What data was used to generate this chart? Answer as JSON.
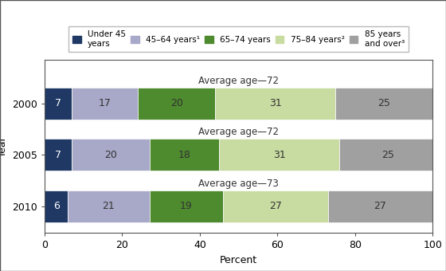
{
  "years": [
    "2000",
    "2005",
    "2010"
  ],
  "categories": [
    "Under 45\nyears",
    "45–64 years¹",
    "65–74 years",
    "75–84 years²",
    "85 years\nand over³"
  ],
  "values": [
    [
      7,
      17,
      20,
      31,
      25
    ],
    [
      7,
      20,
      18,
      31,
      25
    ],
    [
      6,
      21,
      19,
      27,
      27
    ]
  ],
  "avg_ages": [
    "Average age—72",
    "Average age—72",
    "Average age—73"
  ],
  "colors": [
    "#1f3864",
    "#a8a8c8",
    "#4e8a2e",
    "#c8dba0",
    "#a0a0a0"
  ],
  "xlabel": "Percent",
  "ylabel": "Year",
  "xlim": [
    0,
    100
  ],
  "bar_height": 0.62,
  "text_color_dark": "#ffffff",
  "text_color_light": "#333333",
  "fontsize_bar": 9,
  "fontsize_axis": 9,
  "fontsize_legend": 7.5,
  "fontsize_avg": 8.5
}
